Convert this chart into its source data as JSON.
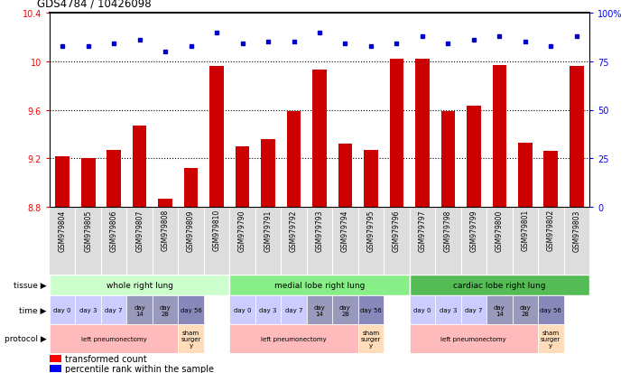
{
  "title": "GDS4784 / 10426098",
  "samples": [
    "GSM979804",
    "GSM979805",
    "GSM979806",
    "GSM979807",
    "GSM979808",
    "GSM979809",
    "GSM979810",
    "GSM979790",
    "GSM979791",
    "GSM979792",
    "GSM979793",
    "GSM979794",
    "GSM979795",
    "GSM979796",
    "GSM979797",
    "GSM979798",
    "GSM979799",
    "GSM979800",
    "GSM979801",
    "GSM979802",
    "GSM979803"
  ],
  "red_values": [
    9.22,
    9.2,
    9.27,
    9.47,
    8.87,
    9.12,
    9.96,
    9.3,
    9.36,
    9.59,
    9.93,
    9.32,
    9.27,
    10.02,
    10.02,
    9.59,
    9.63,
    9.97,
    9.33,
    9.26,
    9.96
  ],
  "blue_values": [
    83,
    83,
    84,
    86,
    80,
    83,
    90,
    84,
    85,
    85,
    90,
    84,
    83,
    84,
    88,
    84,
    86,
    88,
    85,
    83,
    88
  ],
  "ylim_left": [
    8.8,
    10.4
  ],
  "ylim_right": [
    0,
    100
  ],
  "yticks_left": [
    8.8,
    9.2,
    9.6,
    10.0,
    10.4
  ],
  "yticks_right": [
    0,
    25,
    50,
    75,
    100
  ],
  "ytick_labels_left": [
    "8.8",
    "9.2",
    "9.6",
    "10",
    "10.4"
  ],
  "ytick_labels_right": [
    "0",
    "25",
    "50",
    "75",
    "100%"
  ],
  "bar_color": "#cc0000",
  "dot_color": "#0000cc",
  "bg_color": "#ffffff",
  "tissue_colors": [
    "#ccffcc",
    "#88ee88",
    "#55bb55"
  ],
  "tissue_groups": [
    {
      "label": "whole right lung",
      "start": 0,
      "end": 7
    },
    {
      "label": "medial lobe right lung",
      "start": 7,
      "end": 14
    },
    {
      "label": "cardiac lobe right lung",
      "start": 14,
      "end": 21
    }
  ],
  "time_dark_indices": [
    3,
    4,
    10,
    11,
    17,
    18
  ],
  "time_day56_indices": [
    5,
    12,
    19
  ],
  "time_light_color": "#ccccff",
  "time_dark_color": "#9999bb",
  "time_day56_color": "#8888bb",
  "protocol_data": [
    {
      "start": 0,
      "end": 5,
      "label": "left pneumonectomy",
      "color": "#ffbbbb"
    },
    {
      "start": 5,
      "end": 6,
      "label": "sham\nsurger\ny",
      "color": "#ffddbb"
    },
    {
      "start": 7,
      "end": 12,
      "label": "left pneumonectomy",
      "color": "#ffbbbb"
    },
    {
      "start": 12,
      "end": 13,
      "label": "sham\nsurger\ny",
      "color": "#ffddbb"
    },
    {
      "start": 14,
      "end": 19,
      "label": "left pneumonectomy",
      "color": "#ffbbbb"
    },
    {
      "start": 19,
      "end": 20,
      "label": "sham\nsurger\ny",
      "color": "#ffddbb"
    }
  ],
  "legend_red": "transformed count",
  "legend_blue": "percentile rank within the sample",
  "gsm_bg_color": "#dddddd"
}
